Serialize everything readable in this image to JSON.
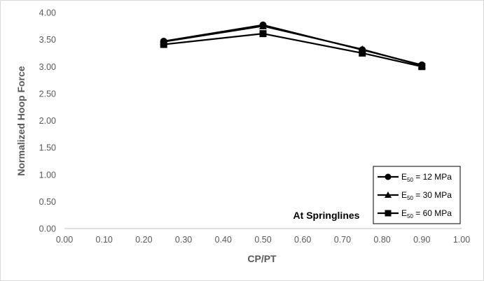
{
  "chart_data": {
    "type": "line",
    "xlabel": "CP/PT",
    "ylabel": "Normalized Hoop Force",
    "xlim": [
      0.0,
      1.0
    ],
    "ylim": [
      0.0,
      4.0
    ],
    "xticks": [
      "0.00",
      "0.10",
      "0.20",
      "0.30",
      "0.40",
      "0.50",
      "0.60",
      "0.70",
      "0.80",
      "0.90",
      "1.00"
    ],
    "yticks": [
      "0.00",
      "0.50",
      "1.00",
      "1.50",
      "2.00",
      "2.50",
      "3.00",
      "3.50",
      "4.00"
    ],
    "grid": false,
    "legend_position": "bottom-right",
    "annotation": "At Springlines",
    "line_color": "#000000",
    "series": [
      {
        "name": "E50 = 12 MPa",
        "legend": {
          "main": "E",
          "sub": "50",
          "rest": " = 12 MPa"
        },
        "marker": "circle",
        "x": [
          0.25,
          0.5,
          0.75,
          0.9
        ],
        "y": [
          3.47,
          3.77,
          3.31,
          3.03
        ]
      },
      {
        "name": "E50 = 30 MPa",
        "legend": {
          "main": "E",
          "sub": "50",
          "rest": " = 30 MPa"
        },
        "marker": "triangle",
        "x": [
          0.25,
          0.5,
          0.75,
          0.9
        ],
        "y": [
          3.46,
          3.75,
          3.32,
          3.02
        ]
      },
      {
        "name": "E50 = 60 MPa",
        "legend": {
          "main": "E",
          "sub": "50",
          "rest": " = 60 MPa"
        },
        "marker": "square",
        "x": [
          0.25,
          0.5,
          0.75,
          0.9
        ],
        "y": [
          3.41,
          3.61,
          3.25,
          3.0
        ]
      }
    ]
  }
}
